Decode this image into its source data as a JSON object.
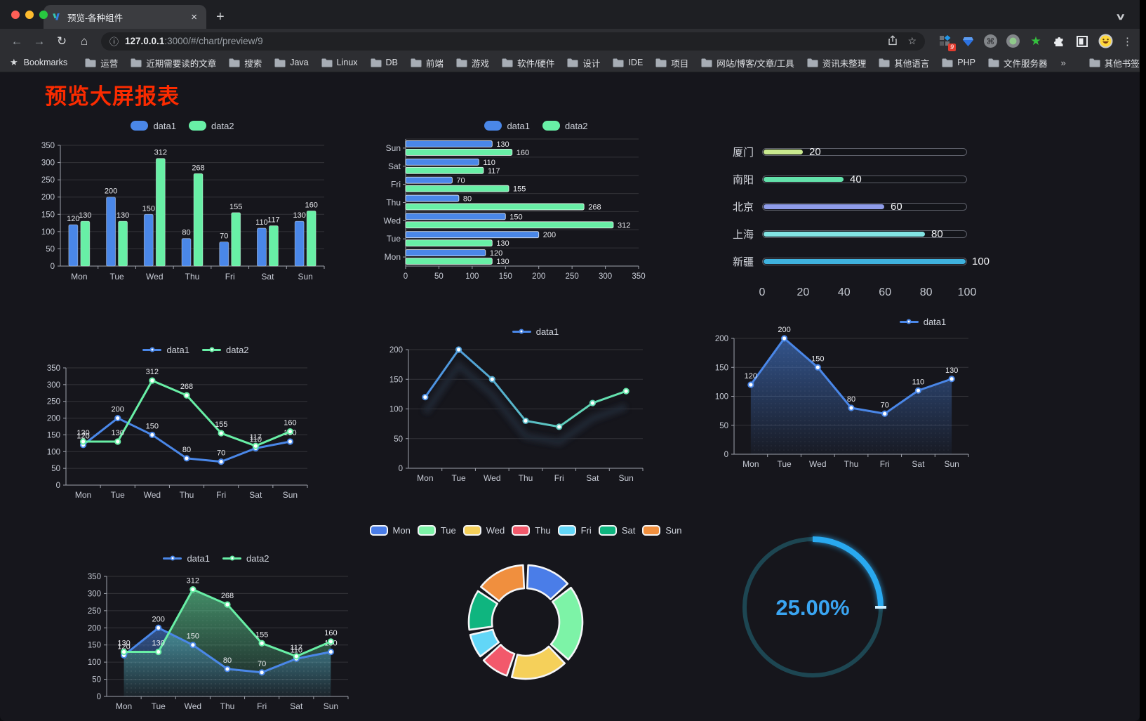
{
  "browser": {
    "tab": {
      "title": "预览-各种组件"
    },
    "url_host": "127.0.0.1",
    "url_rest": ":3000/#/chart/preview/9",
    "bookmarks_label": "Bookmarks",
    "bookmark_folders": [
      "运营",
      "近期需要读的文章",
      "搜索",
      "Java",
      "Linux",
      "DB",
      "前端",
      "游戏",
      "软件/硬件",
      "设计",
      "IDE",
      "项目",
      "网站/博客/文章/工具",
      "资讯未整理",
      "其他语言",
      "PHP",
      "文件服务器"
    ],
    "bookmarks_overflow": "»",
    "other_bookmarks": "其他书签",
    "extension_badge": "9",
    "icons": {
      "back": "←",
      "forward": "→",
      "reload": "↻",
      "home": "⌂",
      "info": "ⓘ",
      "url_star": "☆",
      "bookmark_star": "★",
      "menu": "⋮",
      "cmd": "⌘",
      "new_tab": "+",
      "close_tab": "×",
      "chevron": "∨",
      "green_star": "★"
    }
  },
  "page": {
    "title": "预览大屏报表"
  },
  "chart_data": [
    {
      "id": "bar-grouped",
      "type": "bar",
      "orientation": "vertical",
      "categories": [
        "Mon",
        "Tue",
        "Wed",
        "Thu",
        "Fri",
        "Sat",
        "Sun"
      ],
      "series": [
        {
          "name": "data1",
          "color": "#4a87e8",
          "values": [
            120,
            200,
            150,
            80,
            70,
            110,
            130
          ]
        },
        {
          "name": "data2",
          "color": "#68efa6",
          "values": [
            130,
            130,
            312,
            268,
            155,
            117,
            160
          ]
        }
      ],
      "ylim": [
        0,
        350
      ],
      "ytick_step": 50,
      "value_labels": true,
      "legend_position": "top",
      "grid": true
    },
    {
      "id": "bar-horizontal",
      "type": "bar",
      "orientation": "horizontal",
      "categories": [
        "Mon",
        "Tue",
        "Wed",
        "Thu",
        "Fri",
        "Sat",
        "Sun"
      ],
      "category_order": "Sun at top",
      "series": [
        {
          "name": "data1",
          "color": "#4a87e8",
          "values": [
            120,
            200,
            150,
            80,
            70,
            110,
            130
          ]
        },
        {
          "name": "data2",
          "color": "#68efa6",
          "values": [
            130,
            130,
            312,
            268,
            155,
            117,
            160
          ]
        }
      ],
      "xlim": [
        0,
        350
      ],
      "xtick_step": 50,
      "value_labels": true,
      "legend_position": "top"
    },
    {
      "id": "city-progress",
      "type": "bar",
      "subtype": "progress",
      "items": [
        {
          "label": "厦门",
          "value": 20,
          "color": "#c9e98f"
        },
        {
          "label": "南阳",
          "value": 40,
          "color": "#63e2ab"
        },
        {
          "label": "北京",
          "value": 60,
          "color": "#8f9ce9"
        },
        {
          "label": "上海",
          "value": 80,
          "color": "#82e3e3"
        },
        {
          "label": "新疆",
          "value": 100,
          "color": "#3fb2de"
        }
      ],
      "xlim": [
        0,
        100
      ],
      "xticks": [
        0,
        20,
        40,
        60,
        80,
        100
      ]
    },
    {
      "id": "line-grouped",
      "type": "line",
      "categories": [
        "Mon",
        "Tue",
        "Wed",
        "Thu",
        "Fri",
        "Sat",
        "Sun"
      ],
      "series": [
        {
          "name": "data1",
          "color": "#4a87e8",
          "values": [
            120,
            200,
            150,
            80,
            70,
            110,
            130
          ]
        },
        {
          "name": "data2",
          "color": "#68efa6",
          "values": [
            130,
            130,
            312,
            268,
            155,
            117,
            160
          ]
        }
      ],
      "ylim": [
        0,
        350
      ],
      "ytick_step": 50,
      "value_labels": true,
      "legend_position": "top"
    },
    {
      "id": "line-gradient",
      "type": "line",
      "categories": [
        "Mon",
        "Tue",
        "Wed",
        "Thu",
        "Fri",
        "Sat",
        "Sun"
      ],
      "series": [
        {
          "name": "data1",
          "gradient": [
            "#4a87e8",
            "#68efa6"
          ],
          "values": [
            120,
            200,
            150,
            80,
            70,
            110,
            130
          ]
        }
      ],
      "ylim": [
        0,
        200
      ],
      "ytick_step": 50,
      "value_labels": false,
      "legend_position": "top",
      "shadow": true
    },
    {
      "id": "area-single",
      "type": "area",
      "categories": [
        "Mon",
        "Tue",
        "Wed",
        "Thu",
        "Fri",
        "Sat",
        "Sun"
      ],
      "series": [
        {
          "name": "data1",
          "color": "#4a87e8",
          "area": true,
          "values": [
            120,
            200,
            150,
            80,
            70,
            110,
            130
          ]
        }
      ],
      "ylim": [
        0,
        200
      ],
      "ytick_step": 50,
      "value_labels": true,
      "legend_position": "top"
    },
    {
      "id": "area-grouped",
      "type": "area",
      "categories": [
        "Mon",
        "Tue",
        "Wed",
        "Thu",
        "Fri",
        "Sat",
        "Sun"
      ],
      "series": [
        {
          "name": "data1",
          "color": "#4a87e8",
          "area": true,
          "values": [
            120,
            200,
            150,
            80,
            70,
            110,
            130
          ]
        },
        {
          "name": "data2",
          "color": "#68efa6",
          "area": true,
          "values": [
            130,
            130,
            312,
            268,
            155,
            117,
            160
          ]
        }
      ],
      "ylim": [
        0,
        350
      ],
      "ytick_step": 50,
      "value_labels": true,
      "legend_position": "top"
    },
    {
      "id": "donut",
      "type": "pie",
      "inner_radius_ratio": 0.6,
      "legend_position": "top",
      "items": [
        {
          "label": "Mon",
          "value": 120,
          "color": "#4a7de8"
        },
        {
          "label": "Tue",
          "value": 200,
          "color": "#7df3a7"
        },
        {
          "label": "Wed",
          "value": 150,
          "color": "#f5d05a"
        },
        {
          "label": "Thu",
          "value": 80,
          "color": "#f2596b"
        },
        {
          "label": "Fri",
          "value": 70,
          "color": "#62d6f7"
        },
        {
          "label": "Sat",
          "value": 110,
          "color": "#0fb57f"
        },
        {
          "label": "Sun",
          "value": 130,
          "color": "#f08f3e"
        }
      ]
    },
    {
      "id": "gauge",
      "type": "gauge",
      "value": 25,
      "label": "25.00%",
      "color": "#29a9f0",
      "track_color": "#1d4652",
      "text_color": "#3aa5f2"
    }
  ]
}
